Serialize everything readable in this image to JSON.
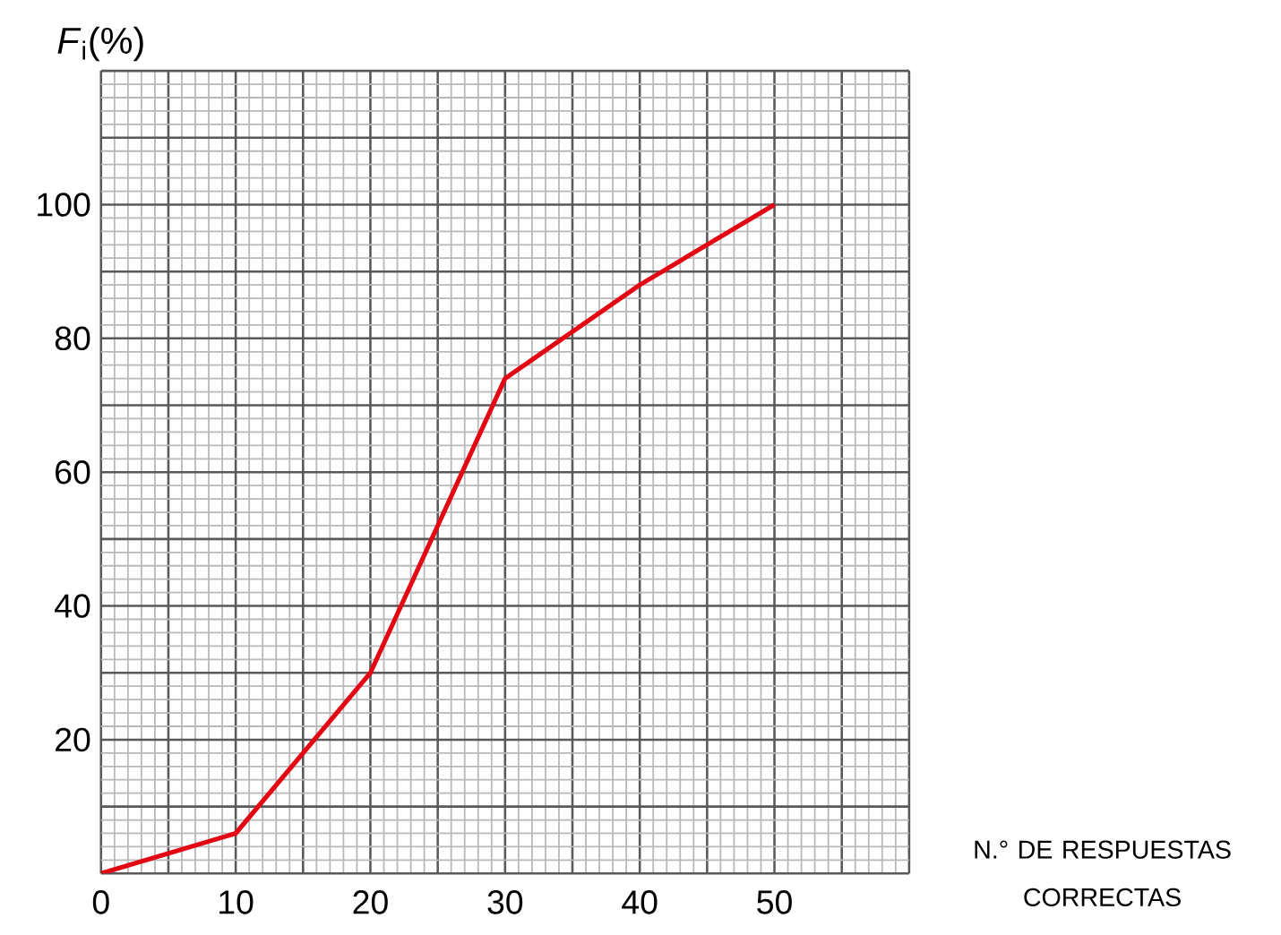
{
  "chart_data": {
    "type": "line",
    "ylabel": "*F*$_{i}$(%)",
    "xlabel": "N.° DE RESPUESTAS CORRECTAS",
    "x": [
      0,
      10,
      20,
      30,
      40,
      50
    ],
    "series": [
      {
        "color": "#e30613",
        "values": [
          0,
          6,
          30,
          74,
          88,
          100
        ]
      }
    ],
    "xlim": [
      0,
      60
    ],
    "ylim": [
      0,
      120
    ],
    "xticks": [
      0,
      {
        "value": 5,
        "label": null
      },
      10,
      {
        "value": 15,
        "label": null
      },
      20,
      {
        "value": 25,
        "label": null
      },
      30,
      {
        "value": 35,
        "label": null
      },
      40,
      {
        "value": 45,
        "label": null
      },
      50,
      {
        "value": 55,
        "label": null
      },
      {
        "value": 60,
        "label": null
      }
    ],
    "yticks": [
      {
        "value": 0,
        "label": null
      },
      {
        "value": 10,
        "label": null
      },
      20,
      {
        "value": 30,
        "label": null
      },
      40,
      {
        "value": 50,
        "label": null
      },
      60,
      {
        "value": 70,
        "label": null
      },
      80,
      {
        "value": 90,
        "label": null
      },
      100,
      {
        "value": 110,
        "label": null
      },
      {
        "value": 120,
        "label": null
      }
    ],
    "grid": true,
    "marker": "none",
    "line_style": "solid"
  }
}
